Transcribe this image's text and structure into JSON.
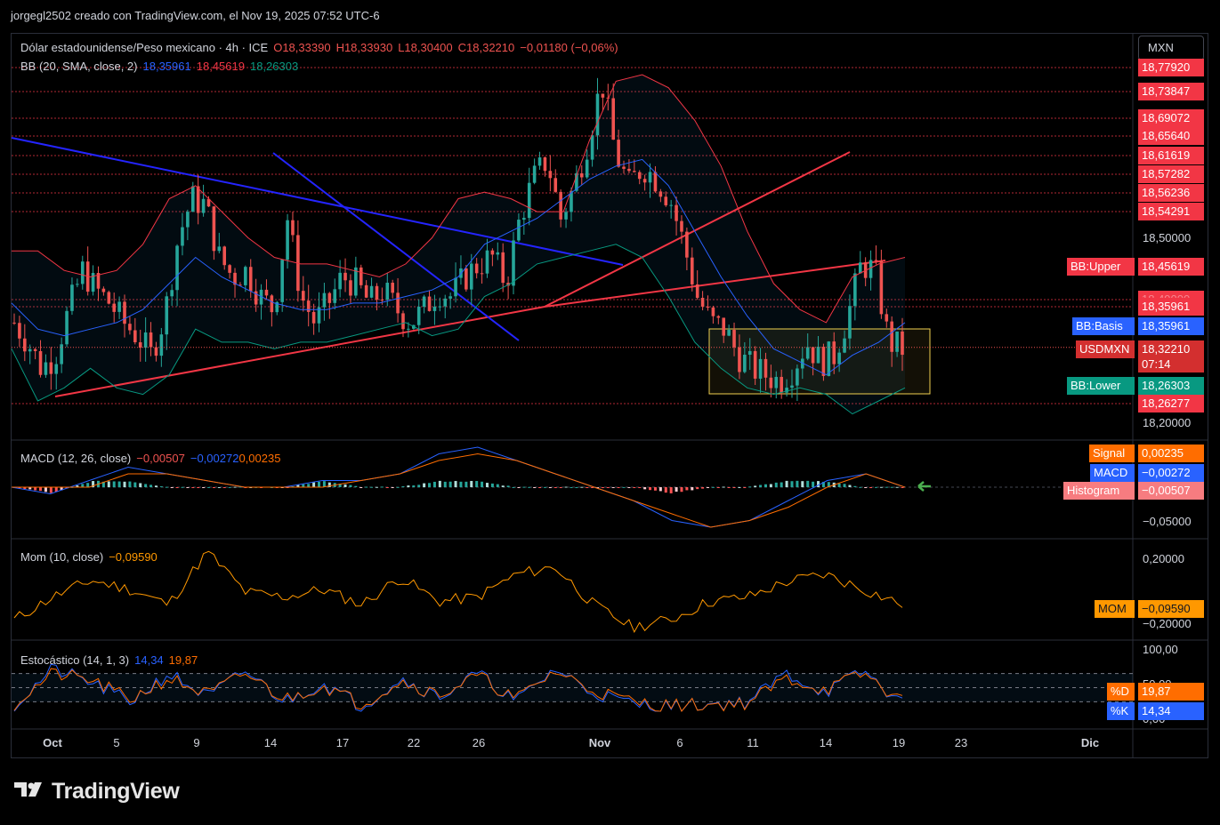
{
  "header": {
    "publish_line": "jorgegl2502 creado con TradingView.com, el Nov 19, 2025 07:52 UTC-6"
  },
  "currency_button": "MXN",
  "brand": "TradingView",
  "main_legend": {
    "symbol": "Dólar estadounidense/Peso mexicano · 4h · ICE",
    "open": "O18,33390",
    "high": "H18,33930",
    "low": "L18,30400",
    "close": "C18,32210",
    "change": "−0,01180 (−0,06%)"
  },
  "bb_legend": {
    "name": "BB (20, SMA, close, 2)",
    "basis": "18,35961",
    "upper": "18,45619",
    "lower": "18,26303"
  },
  "macd_legend": {
    "name": "MACD (12, 26, close)",
    "hist": "−0,00507",
    "macd": "−0,00272",
    "signal": "0,00235"
  },
  "mom_legend": {
    "name": "Mom (10, close)",
    "value": "−0,09590"
  },
  "stoch_legend": {
    "name": "Estocástico (14, 1, 3)",
    "k": "14,34",
    "d": "19,87"
  },
  "price_scale": {
    "red_levels": [
      "18,77920",
      "18,73847",
      "18,69072",
      "18,65640",
      "18,61619",
      "18,57282",
      "18,56236",
      "18,54291",
      "18,49000",
      "18,35961",
      "18,26277"
    ],
    "ticks": [
      "18,50000",
      "18,20000"
    ],
    "bb_upper": {
      "label": "BB:Upper",
      "value": "18,45619"
    },
    "bb_basis": {
      "label": "BB:Basis",
      "value": "18,35961"
    },
    "last": {
      "label": "USDMXN",
      "value": "18,32210",
      "countdown": "07:14"
    },
    "bb_lower": {
      "label": "BB:Lower",
      "value": "18,26303"
    }
  },
  "macd_scale": {
    "signal": {
      "label": "Signal",
      "value": "0,00235"
    },
    "macd": {
      "label": "MACD",
      "value": "−0,00272"
    },
    "hist": {
      "label": "Histogram",
      "value": "−0,00507"
    },
    "tick": "−0,05000"
  },
  "mom_scale": {
    "ticks": [
      "0,20000",
      "−0,20000"
    ],
    "label": "MOM",
    "value": "−0,09590"
  },
  "stoch_scale": {
    "ticks": [
      "100,00",
      "50,00",
      "0,00"
    ],
    "d": {
      "label": "%D",
      "value": "19,87"
    },
    "k": {
      "label": "%K",
      "value": "14,34"
    }
  },
  "x_axis": [
    "Oct",
    "5",
    "9",
    "14",
    "17",
    "22",
    "26",
    "Nov",
    "6",
    "11",
    "14",
    "19",
    "23",
    "Dic"
  ],
  "colors": {
    "up": "#26a69a",
    "down": "#ef5350",
    "bb_basis": "#2962ff",
    "bb_upper": "#f23645",
    "bb_lower": "#089981",
    "trend_red": "#f23645",
    "trend_blue": "#2424ff",
    "macd": "#2962ff",
    "signal": "#ff6d00",
    "mom": "#ff9800",
    "stoch_k": "#2962ff",
    "stoch_d": "#ff6d00",
    "box": "#f0d050"
  },
  "chart_data": {
    "type": "candlestick",
    "title": "Dólar estadounidense/Peso mexicano · 4h · ICE",
    "ylim": [
      18.18,
      18.8
    ],
    "x_labels": [
      "Oct",
      "5",
      "9",
      "14",
      "17",
      "22",
      "26",
      "Nov",
      "6",
      "11",
      "14",
      "19",
      "23",
      "Dic"
    ],
    "close_path": [
      18.36,
      18.33,
      18.29,
      18.31,
      18.38,
      18.44,
      18.41,
      18.39,
      18.36,
      18.34,
      18.31,
      18.37,
      18.49,
      18.55,
      18.54,
      18.46,
      18.43,
      18.44,
      18.4,
      18.38,
      18.52,
      18.4,
      18.36,
      18.39,
      18.43,
      18.42,
      18.39,
      18.41,
      18.38,
      18.36,
      18.38,
      18.41,
      18.4,
      18.43,
      18.45,
      18.46,
      18.42,
      18.52,
      18.58,
      18.61,
      18.52,
      18.57,
      18.64,
      18.73,
      18.62,
      18.57,
      18.6,
      18.58,
      18.55,
      18.48,
      18.4,
      18.36,
      18.35,
      18.31,
      18.29,
      18.28,
      18.27,
      18.29,
      18.33,
      18.3,
      18.31,
      18.37,
      18.45,
      18.44,
      18.33,
      18.32
    ],
    "bb_upper_path": [
      18.47,
      18.47,
      18.44,
      18.43,
      18.44,
      18.48,
      18.55,
      18.57,
      18.53,
      18.49,
      18.46,
      18.45,
      18.45,
      18.44,
      18.43,
      18.45,
      18.49,
      18.55,
      18.56,
      18.55,
      18.53,
      18.53,
      18.64,
      18.73,
      18.74,
      18.72,
      18.67,
      18.6,
      18.5,
      18.42,
      18.38,
      18.36,
      18.43,
      18.45,
      18.46
    ],
    "bb_lower_path": [
      18.32,
      18.24,
      18.26,
      18.29,
      18.26,
      18.25,
      18.28,
      18.35,
      18.33,
      18.33,
      18.32,
      18.33,
      18.33,
      18.34,
      18.35,
      18.36,
      18.34,
      18.35,
      18.4,
      18.42,
      18.45,
      18.46,
      18.47,
      18.48,
      18.46,
      18.4,
      18.33,
      18.29,
      18.26,
      18.25,
      18.26,
      18.25,
      18.22,
      18.24,
      18.26
    ],
    "bb_basis_path": [
      18.39,
      18.35,
      18.34,
      18.35,
      18.36,
      18.38,
      18.42,
      18.46,
      18.43,
      18.41,
      18.39,
      18.38,
      18.38,
      18.39,
      18.39,
      18.4,
      18.41,
      18.43,
      18.48,
      18.5,
      18.52,
      18.55,
      18.58,
      18.6,
      18.61,
      18.57,
      18.5,
      18.43,
      18.37,
      18.32,
      18.3,
      18.28,
      18.31,
      18.33,
      18.36
    ],
    "trendlines": [
      {
        "color": "red",
        "from": [
          "Oct",
          18.23
        ],
        "to": [
          "Nov+1",
          18.33
        ]
      },
      {
        "color": "red",
        "from": [
          "Nov",
          18.34
        ],
        "to": [
          "Nov+7",
          18.62
        ]
      },
      {
        "color": "red",
        "from": [
          "Nov",
          18.34
        ],
        "to": [
          "Nov+18",
          18.47
        ]
      },
      {
        "color": "blue",
        "from": [
          "Oct-1",
          18.57
        ],
        "to": [
          "Nov+1",
          18.46
        ]
      },
      {
        "color": "blue",
        "from": [
          "14",
          18.61
        ],
        "to": [
          "28",
          18.3
        ]
      }
    ],
    "consolidation_box": {
      "y_top": 18.35,
      "y_bottom": 18.23
    },
    "macd_path": [
      0.0,
      -0.01,
      0.01,
      0.03,
      0.02,
      0.01,
      0.0,
      0.0,
      0.01,
      0.01,
      0.02,
      0.05,
      0.06,
      0.04,
      0.02,
      0.0,
      -0.02,
      -0.05,
      -0.06,
      -0.05,
      -0.02,
      0.01,
      0.02,
      0.0
    ],
    "signal_path": [
      0.0,
      0.0,
      0.0,
      0.02,
      0.02,
      0.01,
      0.0,
      0.0,
      0.0,
      0.01,
      0.02,
      0.04,
      0.05,
      0.04,
      0.02,
      0.0,
      -0.02,
      -0.04,
      -0.06,
      -0.05,
      -0.03,
      0.0,
      0.02,
      0.0
    ],
    "mom_path": [
      -0.2,
      -0.05,
      0.06,
      0.0,
      -0.1,
      0.25,
      -0.02,
      -0.05,
      0.0,
      -0.1,
      0.08,
      -0.08,
      -0.05,
      0.1,
      0.15,
      -0.1,
      -0.25,
      -0.2,
      -0.08,
      -0.05,
      0.05,
      0.1,
      0.0,
      -0.1
    ],
    "stoch_k_path": [
      10,
      90,
      60,
      20,
      80,
      30,
      85,
      20,
      60,
      10,
      70,
      30,
      80,
      20,
      90,
      40,
      15,
      10,
      15,
      20,
      80,
      40,
      85,
      14.34
    ],
    "stoch_d_path": [
      15,
      80,
      65,
      25,
      70,
      35,
      80,
      25,
      55,
      15,
      65,
      35,
      75,
      25,
      85,
      45,
      20,
      12,
      14,
      18,
      70,
      45,
      80,
      19.87
    ]
  }
}
